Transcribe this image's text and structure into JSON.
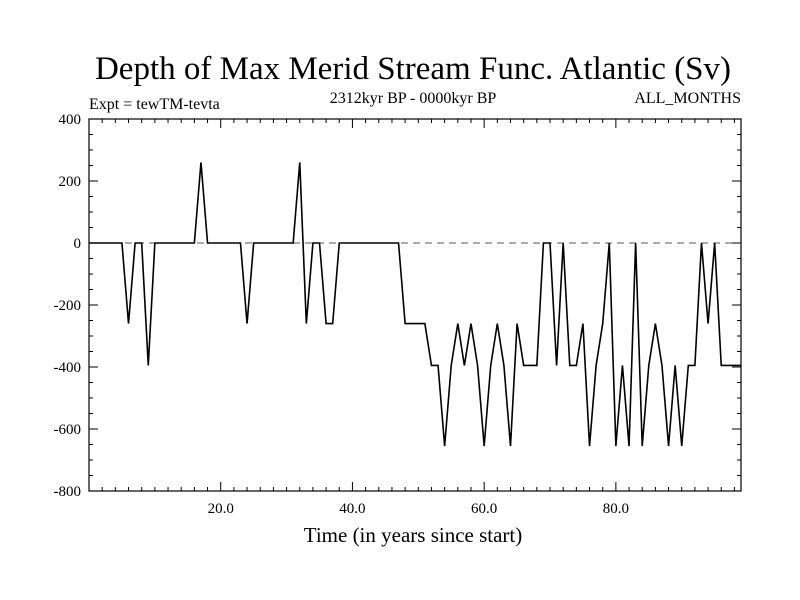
{
  "chart_data": {
    "type": "line",
    "title": "Depth of Max Merid Stream Func. Atlantic (Sv)",
    "subtitle_left": "Expt = tewTM-tevta",
    "subtitle_center": "2312kyr BP - 0000kyr BP",
    "subtitle_right": "ALL_MONTHS",
    "xlabel": "Time (in years since start)",
    "ylabel": "",
    "xlim": [
      0,
      99
    ],
    "ylim": [
      -800,
      400
    ],
    "x_ticks": [
      20,
      40,
      60,
      80
    ],
    "x_tick_labels": [
      "20.0",
      "40.0",
      "60.0",
      "80.0"
    ],
    "y_ticks": [
      400,
      200,
      0,
      -200,
      -400,
      -600,
      -800
    ],
    "y_tick_labels": [
      "400",
      "200",
      "0",
      "-200",
      "-400",
      "-600",
      "-800"
    ],
    "reference_line": {
      "y": 0,
      "style": "dashed"
    },
    "series": [
      {
        "name": "Depth of Max Merid Stream Func.",
        "x": [
          0,
          1,
          2,
          3,
          4,
          5,
          6,
          7,
          8,
          9,
          10,
          11,
          12,
          13,
          14,
          15,
          16,
          17,
          18,
          19,
          20,
          21,
          22,
          23,
          24,
          25,
          26,
          27,
          28,
          29,
          30,
          31,
          32,
          33,
          34,
          35,
          36,
          37,
          38,
          39,
          40,
          41,
          42,
          43,
          44,
          45,
          46,
          47,
          48,
          49,
          50,
          51,
          52,
          53,
          54,
          55,
          56,
          57,
          58,
          59,
          60,
          61,
          62,
          63,
          64,
          65,
          66,
          67,
          68,
          69,
          70,
          71,
          72,
          73,
          74,
          75,
          76,
          77,
          78,
          79,
          80,
          81,
          82,
          83,
          84,
          85,
          86,
          87,
          88,
          89,
          90,
          91,
          92,
          93,
          94,
          95,
          96,
          97,
          98,
          99
        ],
        "values": [
          0,
          0,
          0,
          0,
          0,
          0,
          -260,
          0,
          0,
          -395,
          0,
          0,
          0,
          0,
          0,
          0,
          0,
          260,
          0,
          0,
          0,
          0,
          0,
          0,
          -260,
          0,
          0,
          0,
          0,
          0,
          0,
          0,
          260,
          -260,
          0,
          0,
          -260,
          -260,
          0,
          0,
          0,
          0,
          0,
          0,
          0,
          0,
          0,
          0,
          -260,
          -260,
          -260,
          -260,
          -395,
          -395,
          -655,
          -395,
          -260,
          -395,
          -260,
          -395,
          -655,
          -395,
          -260,
          -395,
          -655,
          -260,
          -395,
          -395,
          -395,
          0,
          0,
          -395,
          0,
          -395,
          -395,
          -260,
          -655,
          -395,
          -260,
          0,
          -655,
          -395,
          -655,
          0,
          -655,
          -395,
          -260,
          -395,
          -655,
          -395,
          -655,
          -395,
          -395,
          0,
          -260,
          0,
          -395,
          -395,
          -395,
          -395
        ]
      }
    ]
  }
}
